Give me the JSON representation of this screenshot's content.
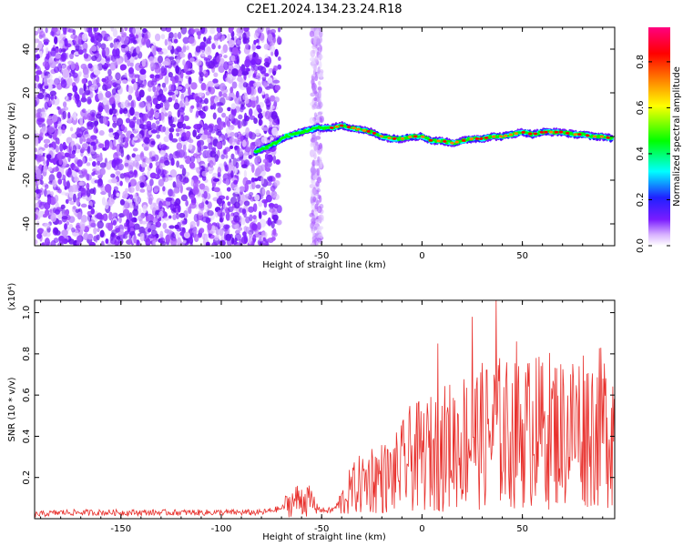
{
  "title": "C2E1.2024.134.23.24.R18",
  "colors": {
    "snr_line": "#e8302c",
    "cold": "#7a1cff",
    "axis": "#000000"
  },
  "chart_data": [
    {
      "type": "heatmap",
      "name": "spectrogram",
      "xlabel": "Height of straight line (km)",
      "ylabel": "Frequency (Hz)",
      "xlim": [
        -193,
        96
      ],
      "ylim": [
        -50,
        50
      ],
      "xticks": [
        -150,
        -100,
        -50,
        0,
        50
      ],
      "yticks": [
        -40,
        -20,
        0,
        20,
        40
      ],
      "colorbar": {
        "label": "Normalized spectral amplitude",
        "range": [
          0,
          0.95
        ],
        "ticks": [
          0.0,
          0.2,
          0.4,
          0.6,
          0.8
        ],
        "colormap": [
          "#ffffff",
          "#d9b3ff",
          "#7a1cff",
          "#2020ff",
          "#00ffff",
          "#00ff00",
          "#ffff00",
          "#ff8000",
          "#ff0000",
          "#ff0080"
        ]
      },
      "signal_track": {
        "x": [
          -83,
          -75,
          -68,
          -60,
          -52,
          -45,
          -40,
          -35,
          -30,
          -25,
          -20,
          -15,
          -10,
          -5,
          0,
          5,
          10,
          15,
          20,
          25,
          30,
          35,
          40,
          45,
          50,
          55,
          60,
          65,
          70,
          75,
          80,
          85,
          90,
          95
        ],
        "freq": [
          -7,
          -4,
          0,
          2,
          4,
          4,
          5,
          4,
          3,
          2,
          0,
          -1,
          -1,
          0,
          0,
          -2,
          -2,
          -3,
          -2,
          -1,
          -1,
          0,
          0,
          1,
          2,
          1,
          2,
          2,
          2,
          1,
          1,
          0,
          0,
          -1
        ]
      },
      "noise_region_x": [
        -193,
        -75
      ]
    },
    {
      "type": "line",
      "name": "snr",
      "xlabel": "Height of straight line (km)",
      "ylabel": "SNR (10 * v/v)",
      "y_multiplier": "(x10⁴)",
      "xlim": [
        -193,
        96
      ],
      "ylim": [
        0,
        1.06
      ],
      "xticks": [
        -150,
        -100,
        -50,
        0,
        50
      ],
      "yticks": [
        0.2,
        0.4,
        0.6,
        0.8,
        1.0
      ],
      "series": [
        {
          "x": [
            -193,
            -180,
            -170,
            -160,
            -150,
            -140,
            -130,
            -120,
            -110,
            -100,
            -90,
            -80,
            -75,
            -70,
            -65,
            -60,
            -55,
            -50,
            -45,
            -40,
            -35,
            -30,
            -25,
            -20,
            -15,
            -10,
            -5,
            0,
            5,
            10,
            15,
            20,
            25,
            30,
            35,
            40,
            45,
            50,
            55,
            60,
            65,
            70,
            75,
            80,
            85,
            90,
            96
          ],
          "y": [
            0.02,
            0.03,
            0.03,
            0.03,
            0.03,
            0.03,
            0.03,
            0.03,
            0.03,
            0.03,
            0.03,
            0.03,
            0.04,
            0.05,
            0.08,
            0.1,
            0.08,
            0.04,
            0.04,
            0.08,
            0.14,
            0.17,
            0.2,
            0.2,
            0.2,
            0.25,
            0.3,
            0.3,
            0.32,
            0.34,
            0.36,
            0.38,
            0.4,
            0.4,
            0.42,
            0.42,
            0.4,
            0.42,
            0.42,
            0.42,
            0.44,
            0.42,
            0.44,
            0.46,
            0.44,
            0.44,
            0.46
          ],
          "peaks": [
            {
              "x": 8,
              "y": 0.85
            },
            {
              "x": 25,
              "y": 0.98
            },
            {
              "x": 37,
              "y": 1.06
            },
            {
              "x": 47,
              "y": 0.86
            },
            {
              "x": 57,
              "y": 0.78
            },
            {
              "x": 90,
              "y": 0.68
            }
          ]
        }
      ]
    }
  ]
}
